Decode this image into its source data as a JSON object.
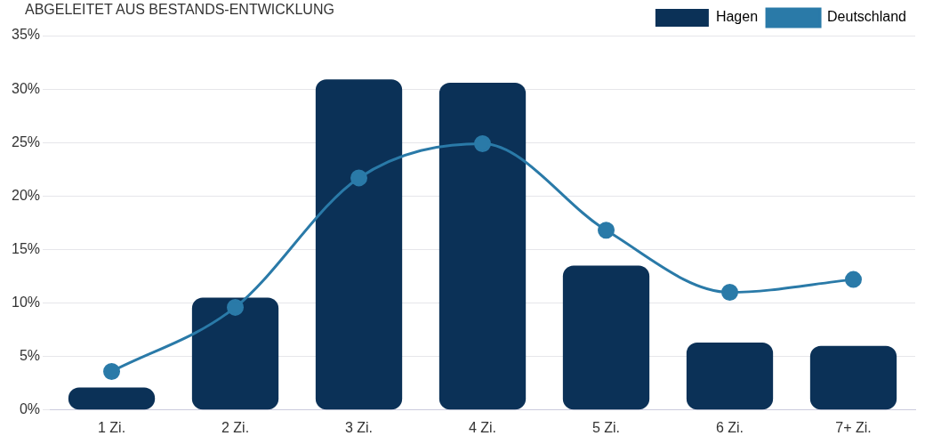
{
  "chart_data": {
    "type": "bar",
    "title": "ABGELEITET AUS BESTANDS-ENTWICKLUNG",
    "categories": [
      "1 Zi.",
      "2 Zi.",
      "3 Zi.",
      "4 Zi.",
      "5 Zi.",
      "6 Zi.",
      "7+ Zi."
    ],
    "series": [
      {
        "name": "Hagen",
        "color": "#0b3157",
        "values": [
          2.1,
          10.5,
          30.9,
          30.6,
          13.5,
          6.3,
          6.0
        ]
      },
      {
        "name": "Deutschland",
        "type": "line",
        "color": "#2a7aa8",
        "values": [
          3.6,
          9.6,
          21.7,
          24.9,
          16.8,
          11.0,
          12.2
        ]
      }
    ],
    "ylim": [
      0,
      35
    ],
    "yticks": [
      {
        "value": 0,
        "label": "0%"
      },
      {
        "value": 5,
        "label": "5%"
      },
      {
        "value": 10,
        "label": "10%"
      },
      {
        "value": 15,
        "label": "15%"
      },
      {
        "value": 20,
        "label": "20%"
      },
      {
        "value": 25,
        "label": "25%"
      },
      {
        "value": 30,
        "label": "30%"
      },
      {
        "value": 35,
        "label": "35%"
      }
    ],
    "grid": "y",
    "legend": "top right",
    "marker": "circle"
  }
}
